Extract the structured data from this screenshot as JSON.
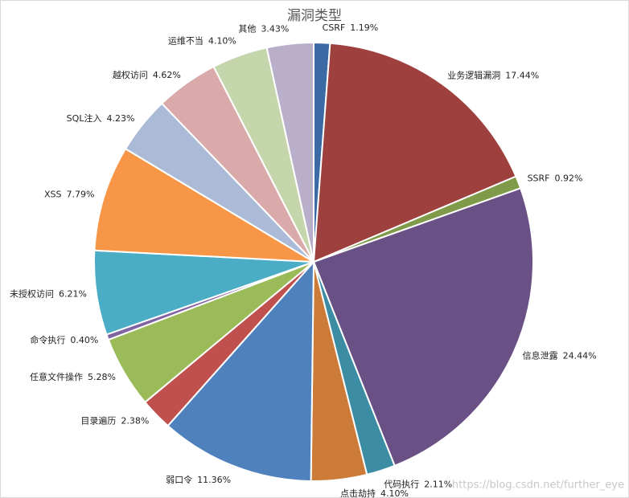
{
  "chart_data": {
    "type": "pie",
    "title": "漏洞类型",
    "categories": [
      "CSRF",
      "业务逻辑漏洞",
      "SSRF",
      "信息泄露",
      "代码执行",
      "点击劫持",
      "弱口令",
      "目录遍历",
      "任意文件操作",
      "命令执行",
      "未授权访问",
      "XSS",
      "SQL注入",
      "越权访问",
      "运维不当",
      "其他"
    ],
    "values": [
      1.19,
      17.44,
      0.92,
      24.44,
      2.11,
      4.1,
      11.36,
      2.38,
      5.28,
      0.4,
      6.21,
      7.79,
      4.23,
      4.62,
      4.1,
      3.43
    ],
    "value_labels": [
      "1.19%",
      "17.44%",
      "0.92%",
      "24.44%",
      "2.11%",
      "4.10%",
      "11.36%",
      "2.38%",
      "5.28%",
      "0.40%",
      "6.21%",
      "7.79%",
      "4.23%",
      "4.62%",
      "4.10%",
      "3.43%"
    ],
    "colors": [
      "#3c6aa4",
      "#9e413e",
      "#7f9a48",
      "#695185",
      "#3c8da3",
      "#cc7b38",
      "#4f81bd",
      "#c0504d",
      "#9bbb59",
      "#8064a2",
      "#4bacc6",
      "#f79646",
      "#aabad7",
      "#d9aaa9",
      "#c6d6ac",
      "#baafca"
    ],
    "watermark": "https://blog.csdn.net/further_eye"
  }
}
